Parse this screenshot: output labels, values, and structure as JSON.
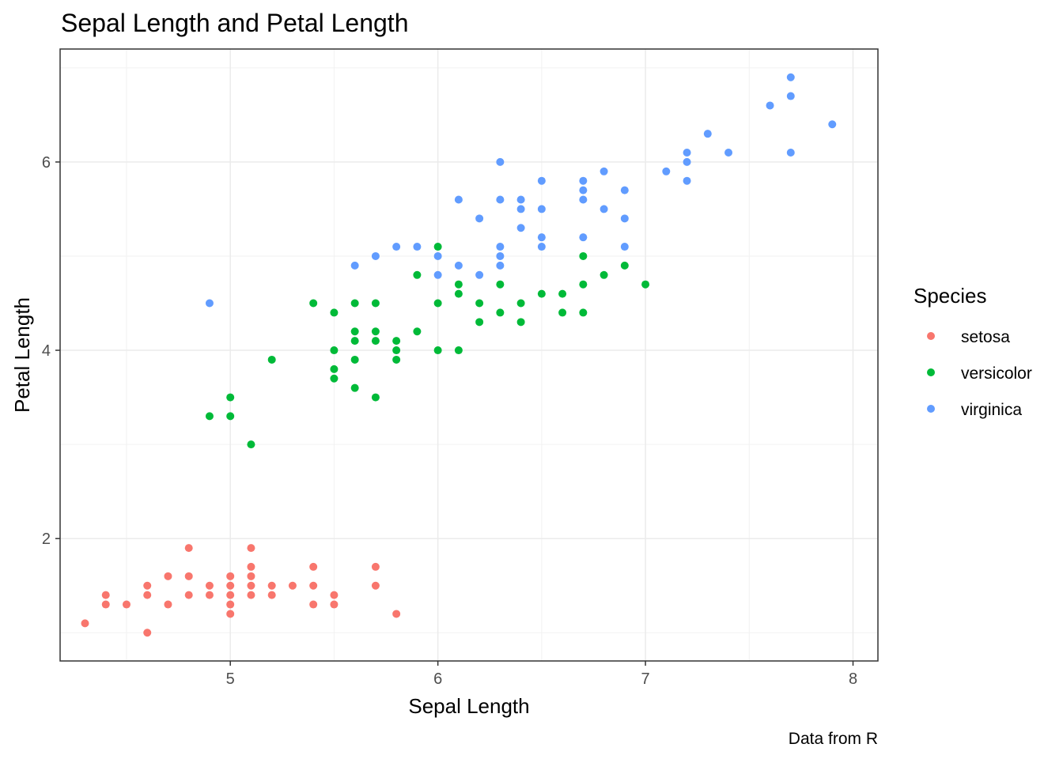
{
  "chart_data": {
    "type": "scatter",
    "title": "Sepal Length and Petal Length",
    "xlabel": "Sepal Length",
    "ylabel": "Petal Length",
    "caption": "Data from R",
    "xlim": [
      4.18,
      8.12
    ],
    "ylim": [
      0.7,
      7.2
    ],
    "x_ticks": [
      5,
      6,
      7,
      8
    ],
    "y_ticks": [
      2,
      4,
      6
    ],
    "grid": true,
    "legend": {
      "title": "Species",
      "position": "right",
      "entries": [
        "setosa",
        "versicolor",
        "virginica"
      ]
    },
    "series": [
      {
        "name": "setosa",
        "color": "#F8766D",
        "points": [
          [
            4.3,
            1.1
          ],
          [
            4.4,
            1.4
          ],
          [
            4.4,
            1.3
          ],
          [
            4.5,
            1.3
          ],
          [
            4.6,
            1.5
          ],
          [
            4.6,
            1.4
          ],
          [
            4.6,
            1.0
          ],
          [
            4.7,
            1.6
          ],
          [
            4.7,
            1.3
          ],
          [
            4.8,
            1.9
          ],
          [
            4.8,
            1.6
          ],
          [
            4.8,
            1.4
          ],
          [
            4.9,
            1.5
          ],
          [
            4.9,
            1.4
          ],
          [
            5.0,
            1.6
          ],
          [
            5.0,
            1.5
          ],
          [
            5.0,
            1.4
          ],
          [
            5.0,
            1.3
          ],
          [
            5.0,
            1.2
          ],
          [
            5.1,
            1.9
          ],
          [
            5.1,
            1.7
          ],
          [
            5.1,
            1.6
          ],
          [
            5.1,
            1.5
          ],
          [
            5.1,
            1.4
          ],
          [
            5.2,
            1.5
          ],
          [
            5.2,
            1.4
          ],
          [
            5.3,
            1.5
          ],
          [
            5.4,
            1.7
          ],
          [
            5.4,
            1.5
          ],
          [
            5.4,
            1.3
          ],
          [
            5.5,
            1.4
          ],
          [
            5.5,
            1.3
          ],
          [
            5.7,
            1.7
          ],
          [
            5.7,
            1.5
          ],
          [
            5.8,
            1.2
          ]
        ]
      },
      {
        "name": "versicolor",
        "color": "#00BA38",
        "points": [
          [
            4.9,
            3.3
          ],
          [
            5.0,
            3.5
          ],
          [
            5.0,
            3.3
          ],
          [
            5.1,
            3.0
          ],
          [
            5.2,
            3.9
          ],
          [
            5.4,
            4.5
          ],
          [
            5.5,
            4.4
          ],
          [
            5.5,
            4.0
          ],
          [
            5.5,
            3.8
          ],
          [
            5.5,
            3.7
          ],
          [
            5.6,
            4.5
          ],
          [
            5.6,
            4.2
          ],
          [
            5.6,
            4.1
          ],
          [
            5.6,
            3.9
          ],
          [
            5.6,
            3.6
          ],
          [
            5.7,
            4.5
          ],
          [
            5.7,
            4.2
          ],
          [
            5.7,
            4.1
          ],
          [
            5.7,
            3.5
          ],
          [
            5.8,
            4.1
          ],
          [
            5.8,
            4.0
          ],
          [
            5.8,
            3.9
          ],
          [
            5.9,
            4.8
          ],
          [
            5.9,
            4.2
          ],
          [
            6.0,
            5.1
          ],
          [
            6.0,
            4.5
          ],
          [
            6.0,
            4.0
          ],
          [
            6.1,
            4.7
          ],
          [
            6.1,
            4.6
          ],
          [
            6.1,
            4.0
          ],
          [
            6.2,
            4.5
          ],
          [
            6.2,
            4.3
          ],
          [
            6.3,
            4.7
          ],
          [
            6.3,
            4.4
          ],
          [
            6.4,
            4.5
          ],
          [
            6.4,
            4.3
          ],
          [
            6.5,
            4.6
          ],
          [
            6.6,
            4.6
          ],
          [
            6.6,
            4.4
          ],
          [
            6.7,
            5.0
          ],
          [
            6.7,
            4.7
          ],
          [
            6.7,
            4.4
          ],
          [
            6.8,
            4.8
          ],
          [
            6.9,
            4.9
          ],
          [
            7.0,
            4.7
          ]
        ]
      },
      {
        "name": "virginica",
        "color": "#619CFF",
        "points": [
          [
            4.9,
            4.5
          ],
          [
            5.6,
            4.9
          ],
          [
            5.7,
            5.0
          ],
          [
            5.8,
            5.1
          ],
          [
            5.9,
            5.1
          ],
          [
            6.0,
            5.0
          ],
          [
            6.0,
            4.8
          ],
          [
            6.1,
            5.6
          ],
          [
            6.1,
            4.9
          ],
          [
            6.2,
            5.4
          ],
          [
            6.2,
            4.8
          ],
          [
            6.3,
            6.0
          ],
          [
            6.3,
            5.6
          ],
          [
            6.3,
            5.1
          ],
          [
            6.3,
            5.0
          ],
          [
            6.3,
            4.9
          ],
          [
            6.4,
            5.6
          ],
          [
            6.4,
            5.5
          ],
          [
            6.4,
            5.3
          ],
          [
            6.5,
            5.8
          ],
          [
            6.5,
            5.5
          ],
          [
            6.5,
            5.2
          ],
          [
            6.5,
            5.1
          ],
          [
            6.7,
            5.8
          ],
          [
            6.7,
            5.7
          ],
          [
            6.7,
            5.6
          ],
          [
            6.7,
            5.2
          ],
          [
            6.8,
            5.9
          ],
          [
            6.8,
            5.5
          ],
          [
            6.9,
            5.7
          ],
          [
            6.9,
            5.4
          ],
          [
            6.9,
            5.1
          ],
          [
            7.1,
            5.9
          ],
          [
            7.2,
            6.1
          ],
          [
            7.2,
            6.0
          ],
          [
            7.2,
            5.8
          ],
          [
            7.3,
            6.3
          ],
          [
            7.4,
            6.1
          ],
          [
            7.6,
            6.6
          ],
          [
            7.7,
            6.9
          ],
          [
            7.7,
            6.7
          ],
          [
            7.7,
            6.1
          ],
          [
            7.9,
            6.4
          ]
        ]
      }
    ]
  }
}
